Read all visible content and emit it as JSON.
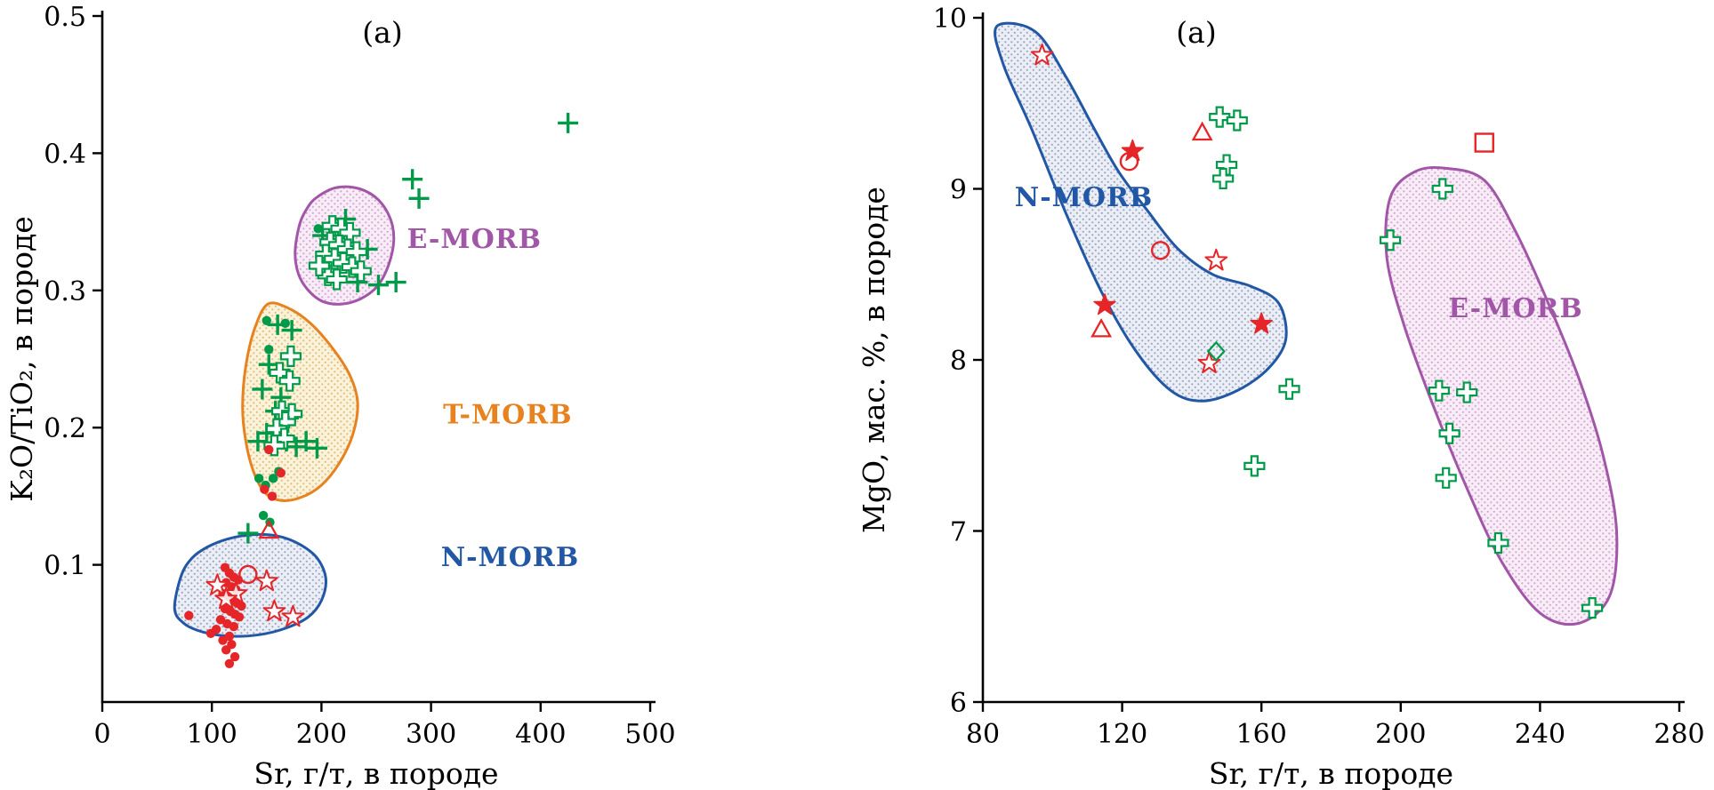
{
  "palette": {
    "green": "#009a49",
    "red": "#e52528",
    "nmorb_blue": "#2257a5",
    "emorb_purple": "#a256a8",
    "tmorb_orange": "#e8821e",
    "axis": "#000000"
  },
  "chart_data": [
    {
      "id": "left",
      "name": "k2o-tio2-vs-sr",
      "type": "scatter",
      "panel_label": "(a)",
      "xlabel": "Sr, г/т, в породе",
      "ylabel": "K₂O/TiO₂, в породе",
      "xlim": [
        0,
        500
      ],
      "ylim": [
        0,
        0.5
      ],
      "xticks": [
        0,
        100,
        200,
        300,
        400,
        500
      ],
      "yticks": [
        0.1,
        0.2,
        0.3,
        0.4,
        0.5
      ],
      "grid": false,
      "regions": [
        {
          "name": "E-MORB",
          "label": "E-MORB",
          "stroke": "emorb_purple",
          "fill": "emorb",
          "label_x": 278,
          "label_y": 0.331,
          "label_anchor": "start",
          "points": [
            [
              196,
              0.368
            ],
            [
              214,
              0.375
            ],
            [
              235,
              0.374
            ],
            [
              252,
              0.366
            ],
            [
              263,
              0.352
            ],
            [
              266,
              0.336
            ],
            [
              261,
              0.318
            ],
            [
              251,
              0.303
            ],
            [
              236,
              0.294
            ],
            [
              218,
              0.29
            ],
            [
              201,
              0.292
            ],
            [
              188,
              0.3
            ],
            [
              179,
              0.312
            ],
            [
              176,
              0.328
            ],
            [
              180,
              0.348
            ],
            [
              187,
              0.36
            ]
          ]
        },
        {
          "name": "T-MORB",
          "label": "T-MORB",
          "stroke": "tmorb_orange",
          "fill": "tmorb",
          "label_x": 311,
          "label_y": 0.203,
          "label_anchor": "start",
          "points": [
            [
              151,
              0.29
            ],
            [
              170,
              0.287
            ],
            [
              190,
              0.276
            ],
            [
              210,
              0.258
            ],
            [
              226,
              0.238
            ],
            [
              233,
              0.218
            ],
            [
              229,
              0.196
            ],
            [
              217,
              0.175
            ],
            [
              200,
              0.158
            ],
            [
              181,
              0.149
            ],
            [
              162,
              0.147
            ],
            [
              148,
              0.153
            ],
            [
              138,
              0.168
            ],
            [
              131,
              0.19
            ],
            [
              128,
              0.215
            ],
            [
              131,
              0.245
            ],
            [
              139,
              0.272
            ]
          ]
        },
        {
          "name": "N-MORB",
          "label": "N-MORB",
          "stroke": "nmorb_blue",
          "fill": "nmorb",
          "label_x": 309,
          "label_y": 0.099,
          "label_anchor": "start",
          "points": [
            [
              66,
              0.068
            ],
            [
              72,
              0.092
            ],
            [
              82,
              0.105
            ],
            [
              96,
              0.113
            ],
            [
              115,
              0.119
            ],
            [
              138,
              0.122
            ],
            [
              160,
              0.121
            ],
            [
              180,
              0.115
            ],
            [
              196,
              0.105
            ],
            [
              204,
              0.09
            ],
            [
              200,
              0.074
            ],
            [
              188,
              0.062
            ],
            [
              168,
              0.054
            ],
            [
              143,
              0.049
            ],
            [
              116,
              0.048
            ],
            [
              92,
              0.051
            ],
            [
              75,
              0.057
            ]
          ]
        }
      ],
      "series": [
        {
          "name": "green-plus",
          "marker": "plus",
          "color": "green",
          "points": [
            [
              425,
              0.422
            ],
            [
              283,
              0.381
            ],
            [
              289,
              0.367
            ],
            [
              268,
              0.306
            ],
            [
              252,
              0.304
            ],
            [
              222,
              0.352
            ],
            [
              201,
              0.34
            ],
            [
              242,
              0.33
            ],
            [
              233,
              0.306
            ],
            [
              160,
              0.275
            ],
            [
              173,
              0.271
            ],
            [
              152,
              0.246
            ],
            [
              146,
              0.228
            ],
            [
              163,
              0.222
            ],
            [
              158,
              0.212
            ],
            [
              170,
              0.207
            ],
            [
              150,
              0.196
            ],
            [
              142,
              0.19
            ],
            [
              168,
              0.19
            ],
            [
              177,
              0.186
            ],
            [
              186,
              0.19
            ],
            [
              196,
              0.185
            ],
            [
              133,
              0.123
            ]
          ]
        },
        {
          "name": "green-open-cross",
          "marker": "open-cross",
          "color": "green",
          "points": [
            [
              210,
              0.347
            ],
            [
              218,
              0.345
            ],
            [
              226,
              0.342
            ],
            [
              208,
              0.335
            ],
            [
              216,
              0.333
            ],
            [
              224,
              0.33
            ],
            [
              232,
              0.328
            ],
            [
              204,
              0.326
            ],
            [
              212,
              0.323
            ],
            [
              220,
              0.32
            ],
            [
              228,
              0.317
            ],
            [
              236,
              0.314
            ],
            [
              206,
              0.311
            ],
            [
              214,
              0.308
            ],
            [
              198,
              0.318
            ],
            [
              172,
              0.252
            ],
            [
              162,
              0.24
            ],
            [
              171,
              0.234
            ],
            [
              164,
              0.212
            ],
            [
              173,
              0.21
            ],
            [
              167,
              0.204
            ],
            [
              159,
              0.199
            ],
            [
              166,
              0.192
            ],
            [
              157,
              0.187
            ]
          ]
        },
        {
          "name": "green-dot",
          "marker": "dot",
          "color": "green",
          "points": [
            [
              197,
              0.345
            ],
            [
              150,
              0.278
            ],
            [
              167,
              0.276
            ],
            [
              152,
              0.257
            ],
            [
              143,
              0.163
            ],
            [
              149,
              0.158
            ],
            [
              156,
              0.163
            ],
            [
              161,
              0.168
            ],
            [
              147,
              0.136
            ],
            [
              153,
              0.131
            ]
          ]
        },
        {
          "name": "red-dot",
          "marker": "dot",
          "color": "red",
          "points": [
            [
              152,
              0.184
            ],
            [
              163,
              0.167
            ],
            [
              148,
              0.155
            ],
            [
              155,
              0.15
            ],
            [
              112,
              0.098
            ],
            [
              116,
              0.094
            ],
            [
              120,
              0.091
            ],
            [
              124,
              0.089
            ],
            [
              113,
              0.087
            ],
            [
              118,
              0.084
            ],
            [
              122,
              0.082
            ],
            [
              110,
              0.079
            ],
            [
              115,
              0.077
            ],
            [
              119,
              0.074
            ],
            [
              123,
              0.072
            ],
            [
              127,
              0.07
            ],
            [
              112,
              0.068
            ],
            [
              117,
              0.066
            ],
            [
              121,
              0.064
            ],
            [
              125,
              0.062
            ],
            [
              108,
              0.06
            ],
            [
              114,
              0.057
            ],
            [
              120,
              0.055
            ],
            [
              104,
              0.053
            ],
            [
              99,
              0.05
            ],
            [
              116,
              0.048
            ],
            [
              110,
              0.045
            ],
            [
              118,
              0.042
            ],
            [
              113,
              0.038
            ],
            [
              121,
              0.033
            ],
            [
              116,
              0.028
            ],
            [
              79,
              0.063
            ]
          ]
        },
        {
          "name": "red-open-star",
          "marker": "open-star",
          "color": "red",
          "points": [
            [
              105,
              0.085
            ],
            [
              122,
              0.079
            ],
            [
              150,
              0.088
            ],
            [
              157,
              0.066
            ],
            [
              174,
              0.062
            ],
            [
              113,
              0.075
            ]
          ]
        },
        {
          "name": "red-open-triangle",
          "marker": "open-triangle",
          "color": "red",
          "points": [
            [
              152,
              0.125
            ]
          ]
        },
        {
          "name": "red-open-circle",
          "marker": "open-circle",
          "color": "red",
          "points": [
            [
              133,
              0.093
            ]
          ]
        }
      ]
    },
    {
      "id": "right",
      "name": "mgo-vs-sr",
      "type": "scatter",
      "panel_label": "(a)",
      "xlabel": "Sr, г/т, в породе",
      "ylabel": "MgO, мас. %, в породе",
      "xlim": [
        80,
        280
      ],
      "ylim": [
        6,
        10
      ],
      "xticks": [
        80,
        120,
        160,
        200,
        240,
        280
      ],
      "yticks": [
        6,
        7,
        8,
        9,
        10
      ],
      "grid": false,
      "regions": [
        {
          "name": "N-MORB",
          "label": "N-MORB",
          "stroke": "nmorb_blue",
          "fill": "nmorb",
          "label_x": 109,
          "label_y": 8.9,
          "label_anchor": "middle",
          "points": [
            [
              84,
              9.95
            ],
            [
              95,
              9.92
            ],
            [
              104,
              9.65
            ],
            [
              112,
              9.35
            ],
            [
              119,
              9.1
            ],
            [
              127,
              8.88
            ],
            [
              136,
              8.65
            ],
            [
              146,
              8.5
            ],
            [
              157,
              8.43
            ],
            [
              165,
              8.33
            ],
            [
              167,
              8.12
            ],
            [
              162,
              7.95
            ],
            [
              153,
              7.82
            ],
            [
              143,
              7.76
            ],
            [
              134,
              7.82
            ],
            [
              124,
              8.05
            ],
            [
              114,
              8.4
            ],
            [
              104,
              8.85
            ],
            [
              94,
              9.35
            ],
            [
              86,
              9.72
            ]
          ]
        },
        {
          "name": "E-MORB",
          "label": "E-MORB",
          "stroke": "emorb_purple",
          "fill": "emorb",
          "label_x": 233,
          "label_y": 8.25,
          "label_anchor": "middle",
          "points": [
            [
              213,
              9.12
            ],
            [
              224,
              9.05
            ],
            [
              233,
              8.75
            ],
            [
              242,
              8.35
            ],
            [
              251,
              7.9
            ],
            [
              258,
              7.45
            ],
            [
              262,
              7.0
            ],
            [
              260,
              6.62
            ],
            [
              251,
              6.46
            ],
            [
              240,
              6.52
            ],
            [
              229,
              6.82
            ],
            [
              219,
              7.25
            ],
            [
              209,
              7.75
            ],
            [
              201,
              8.2
            ],
            [
              196,
              8.6
            ],
            [
              197,
              8.95
            ],
            [
              204,
              9.1
            ]
          ]
        }
      ],
      "series": [
        {
          "name": "green-open-cross",
          "marker": "open-cross",
          "color": "green",
          "points": [
            [
              148,
              9.42
            ],
            [
              153,
              9.4
            ],
            [
              150,
              9.14
            ],
            [
              149,
              9.06
            ],
            [
              168,
              7.83
            ],
            [
              158,
              7.38
            ],
            [
              197,
              8.7
            ],
            [
              212,
              9.0
            ],
            [
              211,
              7.82
            ],
            [
              219,
              7.81
            ],
            [
              214,
              7.57
            ],
            [
              213,
              7.31
            ],
            [
              228,
              6.93
            ],
            [
              255,
              6.55
            ]
          ]
        },
        {
          "name": "red-open-star",
          "marker": "open-star",
          "color": "red",
          "points": [
            [
              97,
              9.78
            ],
            [
              147,
              8.58
            ],
            [
              145,
              7.98
            ]
          ]
        },
        {
          "name": "red-filled-star",
          "marker": "filled-star",
          "color": "red",
          "points": [
            [
              123,
              9.22
            ],
            [
              115,
              8.32
            ],
            [
              160,
              8.21
            ]
          ]
        },
        {
          "name": "red-open-circle",
          "marker": "open-circle",
          "color": "red",
          "points": [
            [
              122,
              9.16
            ],
            [
              131,
              8.64
            ]
          ]
        },
        {
          "name": "red-open-triangle",
          "marker": "open-triangle",
          "color": "red",
          "points": [
            [
              143,
              9.33
            ],
            [
              114,
              8.18
            ]
          ]
        },
        {
          "name": "red-open-square",
          "marker": "open-square",
          "color": "red",
          "points": [
            [
              224,
              9.27
            ]
          ]
        },
        {
          "name": "green-open-diamond",
          "marker": "open-diamond",
          "color": "green",
          "points": [
            [
              147,
              8.05
            ]
          ]
        }
      ]
    }
  ]
}
